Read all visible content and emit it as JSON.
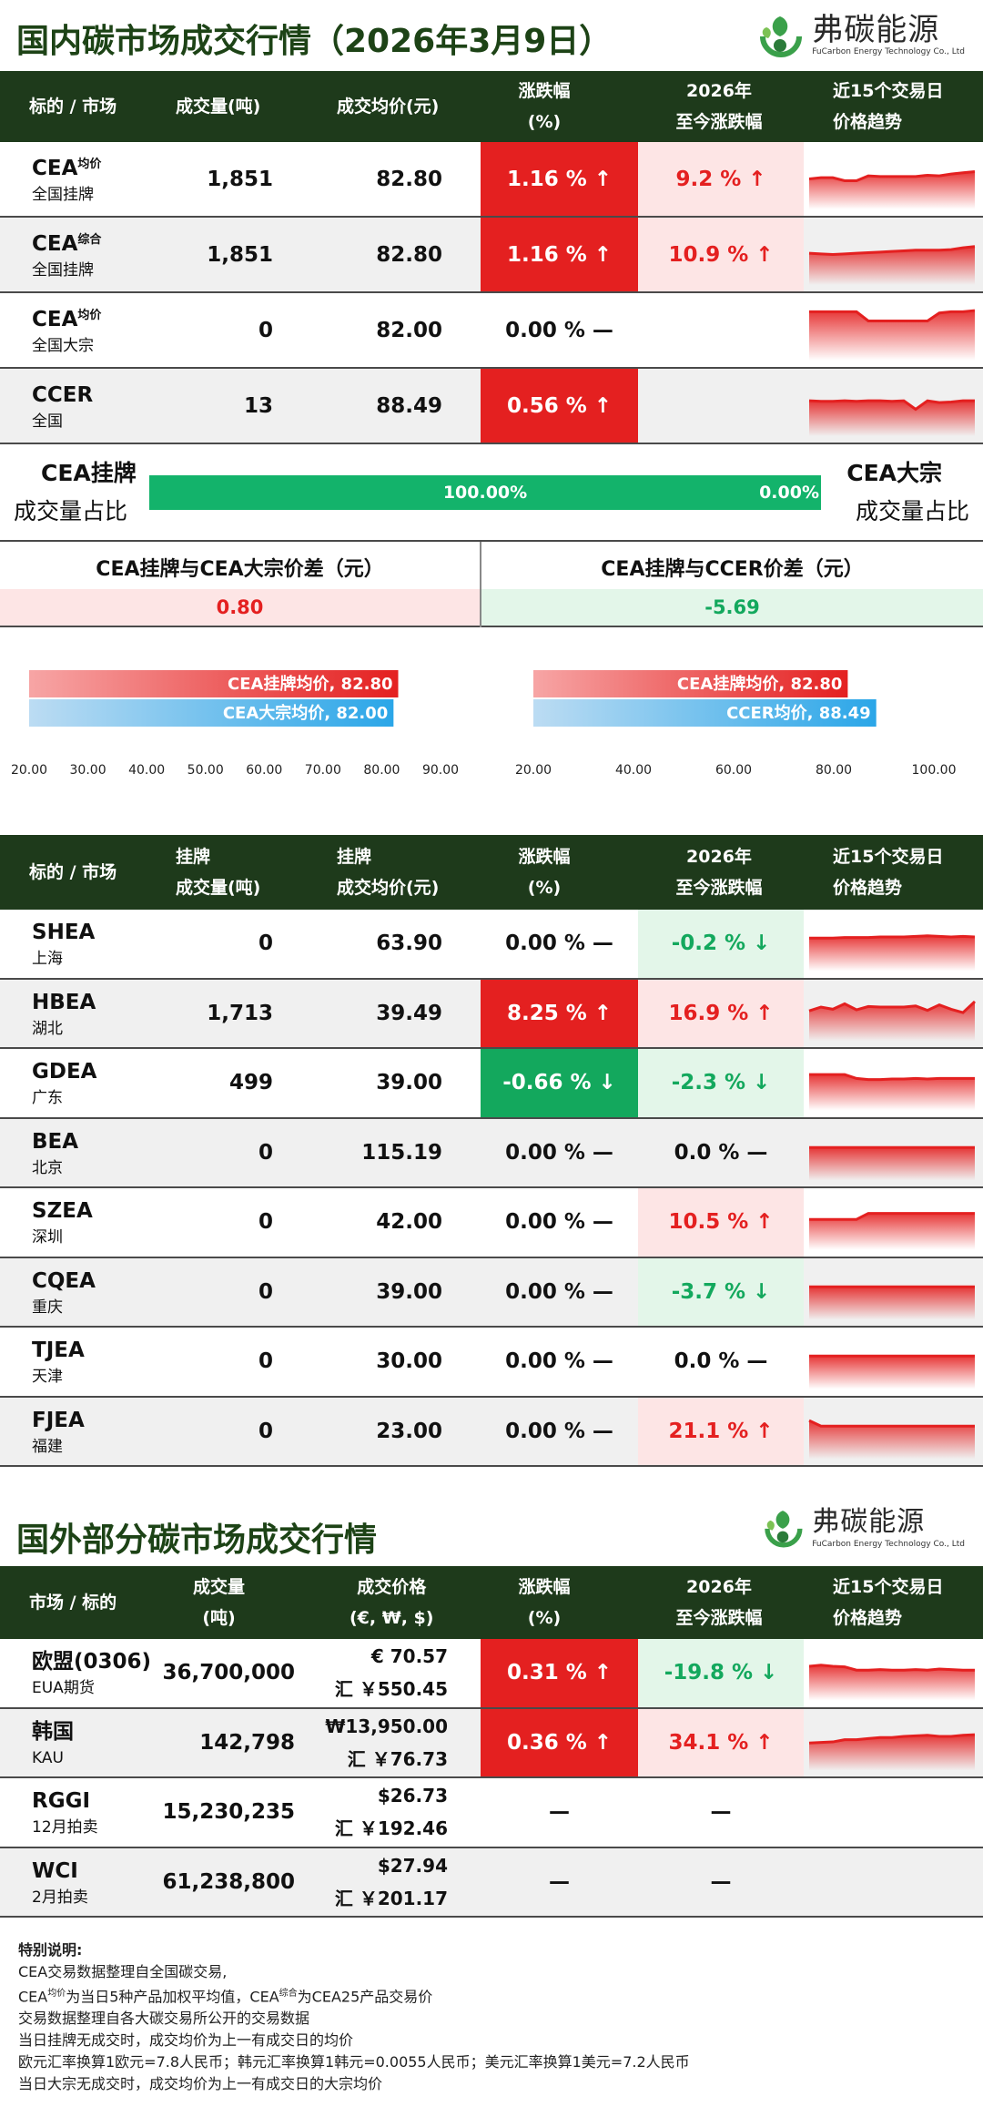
{
  "section1": {
    "title": "国内碳市场成交行情（2026年3月9日）"
  },
  "logo": {
    "cn": "弗碳能源",
    "en": "FuCarbon Energy Technology Co., Ltd"
  },
  "table1": {
    "headers": [
      "标的 / 市场",
      "成交量(吨)",
      "成交均价(元)",
      "涨跌幅",
      "(%)",
      "2026年",
      "至今涨跌幅",
      "近15个交易日",
      "价格趋势"
    ],
    "rows": [
      {
        "name": "CEA",
        "sup": "均价",
        "sub": "全国挂牌",
        "volume": "1,851",
        "price": "82.80",
        "change": "1.16 % ↑",
        "ytd": "9.2 % ↑",
        "dir": "up",
        "ytddir": "up",
        "trend": [
          50,
          52,
          52,
          47,
          47,
          55,
          54,
          54,
          54,
          54,
          56,
          55,
          58,
          60,
          62
        ]
      },
      {
        "name": "CEA",
        "sup": "综合",
        "sub": "全国挂牌",
        "volume": "1,851",
        "price": "82.80",
        "change": "1.16 % ↑",
        "ytd": "10.9 % ↑",
        "dir": "up",
        "ytddir": "up",
        "trend": [
          52,
          51,
          50,
          51,
          52,
          53,
          54,
          55,
          56,
          57,
          57,
          57,
          58,
          61,
          63
        ]
      },
      {
        "name": "CEA",
        "sup": "均价",
        "sub": "全国大宗",
        "volume": "0",
        "price": "82.00",
        "change": "0.00 % —",
        "ytd": "",
        "dir": "flat",
        "ytddir": "none",
        "trend": [
          80,
          80,
          80,
          80,
          80,
          65,
          65,
          65,
          65,
          65,
          65,
          78,
          80,
          80,
          82
        ]
      },
      {
        "name": "CCER",
        "sup": "",
        "sub": "全国",
        "volume": "13",
        "price": "88.49",
        "change": "0.56 % ↑",
        "ytd": "",
        "dir": "up",
        "ytddir": "none",
        "trend": [
          58,
          57,
          57,
          58,
          57,
          58,
          58,
          57,
          58,
          44,
          58,
          55,
          56,
          58,
          58
        ]
      }
    ]
  },
  "ratio": {
    "left_title": "CEA挂牌",
    "left_sub": "成交量占比",
    "right_title": "CEA大宗",
    "right_sub": "成交量占比",
    "left_value": "100.00%",
    "right_value": "0.00%",
    "left_share": 100
  },
  "diff": {
    "left_head": "CEA挂牌与CEA大宗价差（元）",
    "left_value": "0.80",
    "right_head": "CEA挂牌与CCER价差（元）",
    "right_value": "-5.69"
  },
  "chart_data": [
    {
      "type": "bar",
      "orientation": "horizontal",
      "series": [
        {
          "name": "CEA挂牌均价",
          "label": "CEA挂牌均价, 82.80",
          "value": 82.8
        },
        {
          "name": "CEA大宗均价",
          "label": "CEA大宗均价, 82.00",
          "value": 82.0
        }
      ],
      "xlim": [
        20,
        90
      ],
      "ticks": [
        "20.00",
        "30.00",
        "40.00",
        "50.00",
        "60.00",
        "70.00",
        "80.00",
        "90.00"
      ]
    },
    {
      "type": "bar",
      "orientation": "horizontal",
      "series": [
        {
          "name": "CEA挂牌均价",
          "label": "CEA挂牌均价, 82.80",
          "value": 82.8
        },
        {
          "name": "CCER均价",
          "label": "CCER均价, 88.49",
          "value": 88.49
        }
      ],
      "xlim": [
        20,
        100
      ],
      "ticks": [
        "20.00",
        "40.00",
        "60.00",
        "80.00",
        "100.00"
      ]
    }
  ],
  "table2": {
    "headers": [
      "标的 / 市场",
      "挂牌",
      "成交量(吨)",
      "挂牌",
      "成交均价(元)",
      "涨跌幅",
      "(%)",
      "2026年",
      "至今涨跌幅",
      "近15个交易日",
      "价格趋势"
    ],
    "rows": [
      {
        "name": "SHEA",
        "sub": "上海",
        "volume": "0",
        "price": "63.90",
        "change": "0.00 % —",
        "ytd": "-0.2 % ↓",
        "dir": "flat",
        "ytddir": "down",
        "trend": [
          60,
          60,
          60,
          61,
          61,
          61,
          62,
          62,
          62,
          63,
          64,
          63,
          62,
          63,
          62
        ]
      },
      {
        "name": "HBEA",
        "sub": "湖北",
        "volume": "1,713",
        "price": "39.49",
        "change": "8.25 % ↑",
        "ytd": "16.9 % ↑",
        "dir": "up",
        "ytddir": "up",
        "trend": [
          55,
          62,
          58,
          68,
          57,
          63,
          62,
          62,
          62,
          64,
          56,
          66,
          58,
          52,
          72
        ]
      },
      {
        "name": "GDEA",
        "sub": "广东",
        "volume": "499",
        "price": "39.00",
        "change": "-0.66 % ↓",
        "ytd": "-2.3 % ↓",
        "dir": "down",
        "ytddir": "down",
        "trend": [
          65,
          65,
          65,
          65,
          58,
          56,
          56,
          57,
          57,
          58,
          57,
          58,
          58,
          58,
          58
        ]
      },
      {
        "name": "BEA",
        "sub": "北京",
        "volume": "0",
        "price": "115.19",
        "change": "0.00 % —",
        "ytd": "0.0 % —",
        "dir": "flat",
        "ytddir": "flat",
        "trend": [
          60,
          60,
          60,
          60,
          60,
          60,
          60,
          60,
          60,
          60,
          60,
          60,
          60,
          60,
          60
        ]
      },
      {
        "name": "SZEA",
        "sub": "深圳",
        "volume": "0",
        "price": "42.00",
        "change": "0.00 % —",
        "ytd": "10.5 % ↑",
        "dir": "flat",
        "ytddir": "up",
        "trend": [
          55,
          55,
          55,
          55,
          55,
          66,
          66,
          66,
          66,
          66,
          66,
          66,
          66,
          66,
          66
        ]
      },
      {
        "name": "CQEA",
        "sub": "重庆",
        "volume": "0",
        "price": "39.00",
        "change": "0.00 % —",
        "ytd": "-3.7 % ↓",
        "dir": "flat",
        "ytddir": "down",
        "trend": [
          60,
          60,
          60,
          60,
          60,
          60,
          60,
          60,
          60,
          60,
          60,
          60,
          60,
          60,
          60
        ]
      },
      {
        "name": "TJEA",
        "sub": "天津",
        "volume": "0",
        "price": "30.00",
        "change": "0.00 % —",
        "ytd": "0.0 % —",
        "dir": "flat",
        "ytddir": "flat",
        "trend": [
          60,
          60,
          60,
          60,
          60,
          60,
          60,
          60,
          60,
          60,
          60,
          60,
          60,
          60,
          60
        ]
      },
      {
        "name": "FJEA",
        "sub": "福建",
        "volume": "0",
        "price": "23.00",
        "change": "0.00 % —",
        "ytd": "21.1 % ↑",
        "dir": "flat",
        "ytddir": "up",
        "trend": [
          70,
          60,
          60,
          60,
          60,
          60,
          60,
          60,
          60,
          60,
          60,
          60,
          60,
          60,
          60
        ]
      }
    ]
  },
  "section2": {
    "title": "国外部分碳市场成交行情"
  },
  "table3": {
    "headers": [
      "市场 / 标的",
      "成交量",
      "(吨)",
      "成交价格",
      "(€, ₩, $)",
      "涨跌幅",
      "(%)",
      "2026年",
      "至今涨跌幅",
      "近15个交易日",
      "价格趋势"
    ],
    "rows": [
      {
        "name": "欧盟(0306)",
        "sub": "EUA期货",
        "volume": "36,700,000",
        "price": "€ 70.57",
        "price_cny": "汇 ￥550.45",
        "change": "0.31 % ↑",
        "ytd": "-19.8 % ↓",
        "dir": "up",
        "ytddir": "down",
        "trend": [
          62,
          64,
          62,
          61,
          55,
          55,
          56,
          55,
          55,
          56,
          55,
          57,
          56,
          55,
          55
        ]
      },
      {
        "name": "韩国",
        "sub": "KAU",
        "volume": "142,798",
        "price": "₩13,950.00",
        "price_cny": "汇 ￥76.73",
        "change": "0.36 % ↑",
        "ytd": "34.1 % ↑",
        "dir": "up",
        "ytddir": "up",
        "trend": [
          50,
          51,
          52,
          56,
          56,
          58,
          60,
          60,
          62,
          63,
          64,
          62,
          62,
          64,
          65
        ]
      },
      {
        "name": "RGGI",
        "sub": "12月拍卖",
        "volume": "15,230,235",
        "price": "$26.73",
        "price_cny": "汇 ￥192.46",
        "change": "—",
        "ytd": "—",
        "dir": "none",
        "ytddir": "none",
        "trend": []
      },
      {
        "name": "WCI",
        "sub": "2月拍卖",
        "volume": "61,238,800",
        "price": "$27.94",
        "price_cny": "汇 ￥201.17",
        "change": "—",
        "ytd": "—",
        "dir": "none",
        "ytddir": "none",
        "trend": []
      }
    ]
  },
  "notes": {
    "heading": "特别说明:",
    "line1": "CEA交易数据整理自全国碳交易,",
    "line2a": "CEA",
    "line2sup1": "均价",
    "line2b": "为当日5种产品加权平均值，CEA",
    "line2sup2": "综合",
    "line2c": "为CEA25产品交易价",
    "line3": "交易数据整理自各大碳交易所公开的交易数据",
    "line4": "当日挂牌无成交时，成交均价为上一有成交日的均价",
    "line5": "欧元汇率换算1欧元=7.8人民币；韩元汇率换算1韩元=0.0055人民币；美元汇率换算1美元=7.2人民币",
    "line6": "当日大宗无成交时，成交均价为上一有成交日的大宗均价"
  },
  "colors": {
    "header_bg": "#1e3a1b",
    "up": "#e42020",
    "down": "#13a85d",
    "title": "#1d4316"
  }
}
